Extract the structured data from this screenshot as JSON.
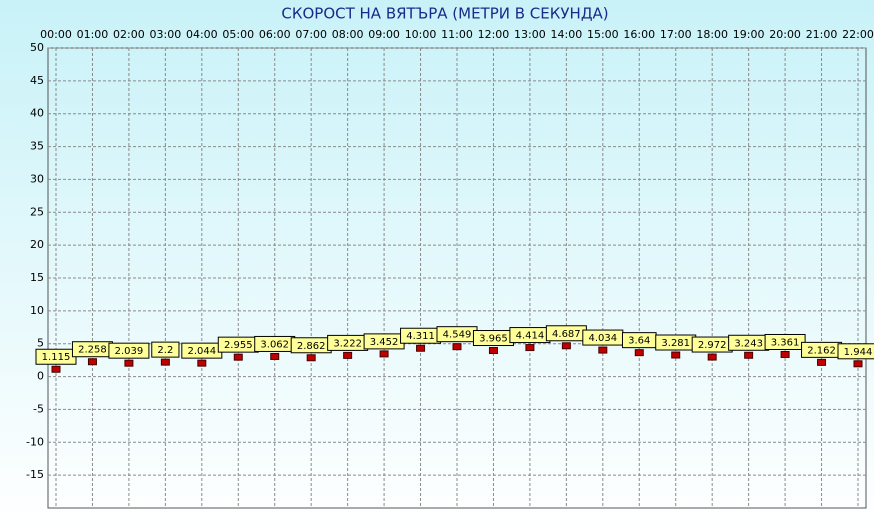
{
  "chart_data": {
    "type": "dot",
    "title": "СКОРОСТ НА ВЯТЪРА (МЕТРИ В СЕКУНДА)",
    "categories": [
      "00:00",
      "01:00",
      "02:00",
      "03:00",
      "04:00",
      "05:00",
      "06:00",
      "07:00",
      "08:00",
      "09:00",
      "10:00",
      "11:00",
      "12:00",
      "13:00",
      "14:00",
      "15:00",
      "16:00",
      "17:00",
      "18:00",
      "19:00",
      "20:00",
      "21:00",
      "22:00"
    ],
    "values": [
      1.115,
      2.258,
      2.039,
      2.2,
      2.044,
      2.955,
      3.062,
      2.862,
      3.222,
      3.452,
      4.311,
      4.549,
      3.965,
      4.414,
      4.687,
      4.034,
      3.64,
      3.281,
      2.972,
      3.243,
      3.361,
      2.162,
      1.944
    ],
    "color": "#c00000",
    "ylim": [
      -20,
      50
    ],
    "yticks": [
      -15,
      -10,
      -5,
      0,
      5,
      10,
      15,
      20,
      25,
      30,
      35,
      40,
      45,
      50
    ],
    "grid": true
  }
}
